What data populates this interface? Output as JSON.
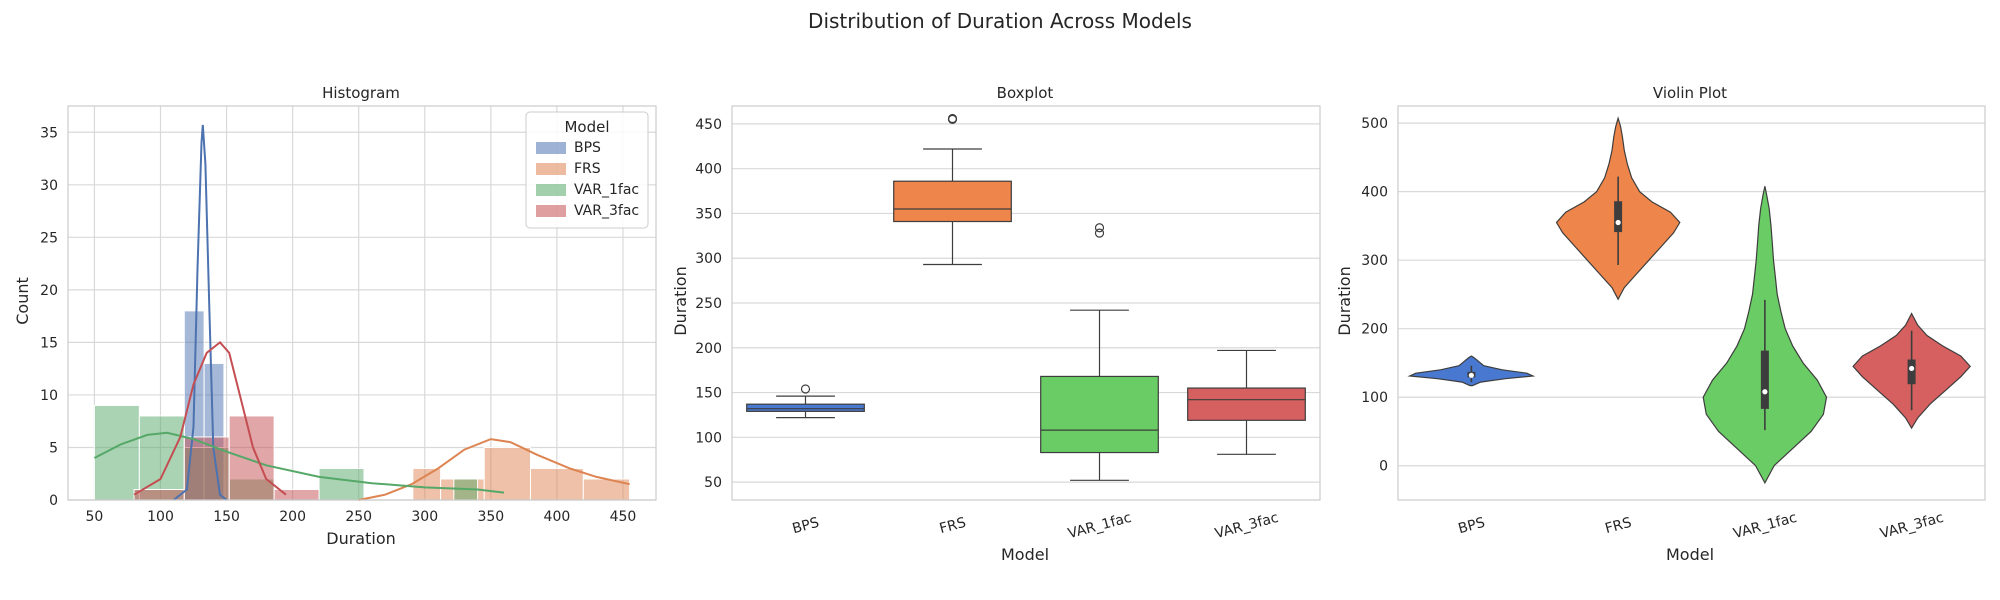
{
  "figure": {
    "suptitle": "Distribution of Duration Across Models"
  },
  "colors": {
    "BPS": "#4c72b0",
    "FRS": "#dd8452",
    "VAR_1fac": "#55a868",
    "VAR_3fac": "#c44e52",
    "BPS_box": "#4878d0",
    "FRS_box": "#ee854a",
    "VAR_1fac_box": "#6acc64",
    "VAR_3fac_box": "#d65f5f",
    "grid": "#d9d9d9",
    "frame": "#cccccc",
    "line": "#3d3d3d"
  },
  "chart_data": [
    {
      "type": "histogram",
      "title": "Histogram",
      "xlabel": "Duration",
      "ylabel": "Count",
      "xlim": [
        30,
        475
      ],
      "ylim": [
        0,
        37.5
      ],
      "xticks": [
        50,
        100,
        150,
        200,
        250,
        300,
        350,
        400,
        450
      ],
      "yticks": [
        0,
        5,
        10,
        15,
        20,
        25,
        30,
        35
      ],
      "grid": true,
      "legend": {
        "title": "Model",
        "position": "top-right",
        "entries": [
          "BPS",
          "FRS",
          "VAR_1fac",
          "VAR_3fac"
        ]
      },
      "series": [
        {
          "name": "BPS",
          "bins": [
            [
              118,
              133,
              18
            ],
            [
              133,
              148,
              13
            ],
            [
              148,
              163,
              0
            ]
          ],
          "kde": [
            [
              110,
              0
            ],
            [
              120,
              1
            ],
            [
              125,
              7
            ],
            [
              128,
              22
            ],
            [
              131,
              34
            ],
            [
              132,
              35.7
            ],
            [
              134,
              32
            ],
            [
              137,
              18
            ],
            [
              140,
              5
            ],
            [
              145,
              0.5
            ],
            [
              150,
              0
            ]
          ]
        },
        {
          "name": "FRS",
          "bins": [
            [
              291,
              312,
              3
            ],
            [
              312,
              345,
              2
            ],
            [
              345,
              380,
              5
            ],
            [
              380,
              420,
              3
            ],
            [
              420,
              455,
              2
            ]
          ],
          "kde": [
            [
              250,
              0
            ],
            [
              270,
              0.5
            ],
            [
              290,
              1.5
            ],
            [
              310,
              3
            ],
            [
              330,
              4.8
            ],
            [
              350,
              5.8
            ],
            [
              365,
              5.5
            ],
            [
              385,
              4.3
            ],
            [
              410,
              3
            ],
            [
              430,
              2.2
            ],
            [
              455,
              1.5
            ]
          ]
        },
        {
          "name": "VAR_1fac",
          "bins": [
            [
              50,
              84,
              9
            ],
            [
              84,
              118,
              8
            ],
            [
              118,
              152,
              5
            ],
            [
              152,
              186,
              2
            ],
            [
              186,
              220,
              0
            ],
            [
              220,
              254,
              3
            ],
            [
              254,
              288,
              0
            ],
            [
              288,
              322,
              0
            ],
            [
              322,
              340,
              2
            ]
          ],
          "kde": [
            [
              50,
              4
            ],
            [
              70,
              5.3
            ],
            [
              90,
              6.2
            ],
            [
              105,
              6.4
            ],
            [
              125,
              5.8
            ],
            [
              150,
              4.6
            ],
            [
              180,
              3.3
            ],
            [
              220,
              2.2
            ],
            [
              260,
              1.6
            ],
            [
              300,
              1.2
            ],
            [
              340,
              1.0
            ],
            [
              360,
              0.7
            ]
          ]
        },
        {
          "name": "VAR_3fac",
          "bins": [
            [
              80,
              118,
              1
            ],
            [
              118,
              152,
              6
            ],
            [
              152,
              186,
              8
            ],
            [
              186,
              220,
              1
            ]
          ],
          "kde": [
            [
              80,
              0.5
            ],
            [
              100,
              2
            ],
            [
              115,
              6
            ],
            [
              125,
              11
            ],
            [
              135,
              14
            ],
            [
              145,
              15
            ],
            [
              152,
              14
            ],
            [
              160,
              10
            ],
            [
              170,
              5
            ],
            [
              180,
              2
            ],
            [
              195,
              0.5
            ]
          ]
        }
      ]
    },
    {
      "type": "boxplot",
      "title": "Boxplot",
      "xlabel": "Model",
      "ylabel": "Duration",
      "categories": [
        "BPS",
        "FRS",
        "VAR_1fac",
        "VAR_3fac"
      ],
      "ylim": [
        30,
        470
      ],
      "yticks": [
        50,
        100,
        150,
        200,
        250,
        300,
        350,
        400,
        450
      ],
      "grid": true,
      "boxes": [
        {
          "name": "BPS",
          "whislo": 122,
          "q1": 129,
          "med": 132,
          "q3": 137,
          "whishi": 146,
          "fliers": [
            154
          ]
        },
        {
          "name": "FRS",
          "whislo": 293,
          "q1": 341,
          "med": 355,
          "q3": 386,
          "whishi": 422,
          "fliers": [
            455,
            456
          ]
        },
        {
          "name": "VAR_1fac",
          "whislo": 52,
          "q1": 83,
          "med": 108,
          "q3": 168,
          "whishi": 242,
          "fliers": [
            328,
            334
          ]
        },
        {
          "name": "VAR_3fac",
          "whislo": 81,
          "q1": 119,
          "med": 142,
          "q3": 155,
          "whishi": 197,
          "fliers": []
        }
      ]
    },
    {
      "type": "violin",
      "title": "Violin Plot",
      "xlabel": "Model",
      "ylabel": "Duration",
      "categories": [
        "BPS",
        "FRS",
        "VAR_1fac",
        "VAR_3fac"
      ],
      "ylim": [
        -50,
        525
      ],
      "yticks": [
        0,
        100,
        200,
        300,
        400,
        500
      ],
      "grid": true,
      "violins": [
        {
          "name": "BPS",
          "profile": [
            [
              117,
              0.02
            ],
            [
              122,
              0.15
            ],
            [
              127,
              0.55
            ],
            [
              131,
              1.0
            ],
            [
              135,
              0.9
            ],
            [
              140,
              0.5
            ],
            [
              146,
              0.2
            ],
            [
              152,
              0.12
            ],
            [
              158,
              0.04
            ],
            [
              160,
              0.0
            ]
          ],
          "q1": 129,
          "med": 132,
          "q3": 137,
          "whislo": 122,
          "whishi": 146
        },
        {
          "name": "FRS",
          "profile": [
            [
              243,
              0.0
            ],
            [
              260,
              0.1
            ],
            [
              280,
              0.3
            ],
            [
              300,
              0.5
            ],
            [
              320,
              0.7
            ],
            [
              340,
              0.9
            ],
            [
              355,
              1.0
            ],
            [
              370,
              0.85
            ],
            [
              385,
              0.55
            ],
            [
              400,
              0.35
            ],
            [
              420,
              0.22
            ],
            [
              440,
              0.15
            ],
            [
              460,
              0.1
            ],
            [
              480,
              0.07
            ],
            [
              495,
              0.04
            ],
            [
              507,
              0.0
            ]
          ],
          "q1": 341,
          "med": 355,
          "q3": 386,
          "whislo": 293,
          "whishi": 422
        },
        {
          "name": "VAR_1fac",
          "profile": [
            [
              -25,
              0.0
            ],
            [
              0,
              0.15
            ],
            [
              25,
              0.45
            ],
            [
              50,
              0.75
            ],
            [
              75,
              0.95
            ],
            [
              100,
              1.0
            ],
            [
              125,
              0.85
            ],
            [
              150,
              0.62
            ],
            [
              175,
              0.45
            ],
            [
              200,
              0.33
            ],
            [
              225,
              0.26
            ],
            [
              250,
              0.2
            ],
            [
              275,
              0.17
            ],
            [
              300,
              0.14
            ],
            [
              325,
              0.12
            ],
            [
              350,
              0.1
            ],
            [
              375,
              0.07
            ],
            [
              395,
              0.03
            ],
            [
              408,
              0.0
            ]
          ],
          "q1": 83,
          "med": 108,
          "q3": 168,
          "whislo": 52,
          "whishi": 242
        },
        {
          "name": "VAR_3fac",
          "profile": [
            [
              55,
              0.0
            ],
            [
              70,
              0.1
            ],
            [
              90,
              0.3
            ],
            [
              110,
              0.55
            ],
            [
              130,
              0.8
            ],
            [
              145,
              0.95
            ],
            [
              160,
              0.8
            ],
            [
              175,
              0.5
            ],
            [
              190,
              0.25
            ],
            [
              205,
              0.1
            ],
            [
              222,
              0.0
            ]
          ],
          "q1": 119,
          "med": 142,
          "q3": 155,
          "whislo": 81,
          "whishi": 197
        }
      ]
    }
  ]
}
